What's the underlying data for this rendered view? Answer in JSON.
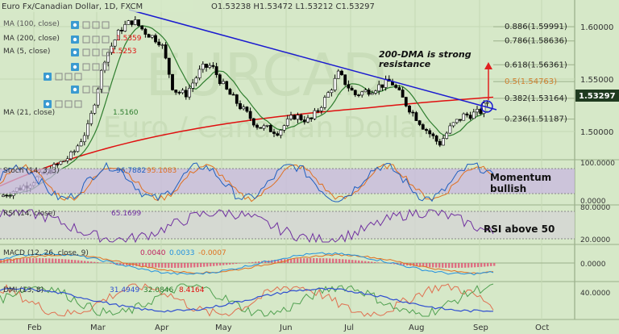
{
  "header": {
    "symbol": "Euro Fx/Canadian Dollar, 1D, FXCM",
    "ohlc": "O1.53238  H1.53472  L1.53212  C1.53297"
  },
  "indicators": {
    "ma100": "MA (100, close)",
    "ma200": "MA (200, close)",
    "ma200_value": "1.5359",
    "ma5": "MA (5, close)",
    "ma5_value": "1.5253",
    "ma21": "MA (21, close)",
    "ma21_value": "1.5160"
  },
  "watermark": "EURCAD",
  "watermark_sub": "Euro / Canadian Dollar",
  "fib_levels": [
    {
      "label": "0.886(1.59991)",
      "value": 1.59991
    },
    {
      "label": "0.786(1.58636)",
      "value": 1.58636
    },
    {
      "label": "0.618(1.56361)",
      "value": 1.56361
    },
    {
      "label": "0.5(1.54763)",
      "value": 1.54763
    },
    {
      "label": "0.382(1.53164)",
      "value": 1.53164
    },
    {
      "label": "0.236(1.51187)",
      "value": 1.51187
    }
  ],
  "annotations": {
    "dma_note_1": "200-DMA is strong",
    "dma_note_2": "resistance",
    "momentum_1": "Momentum",
    "momentum_2": "bullish",
    "rsi_note": "RSI above 50"
  },
  "price_axis": [
    "1.60000",
    "1.55000",
    "1.50000"
  ],
  "current_price": "1.53297",
  "stoch": {
    "label": "Stoch (14, 3, 3)",
    "k": "96.7882",
    "d": "95.1083",
    "ticks": [
      "100.0000",
      "0.0000"
    ]
  },
  "rsi": {
    "label": "RSI (14, close)",
    "value": "65.1699",
    "ticks": [
      "80.0000",
      "20.0000"
    ]
  },
  "macd": {
    "label": "MACD (12, 26, close, 9)",
    "v1": "0.0040",
    "v2": "0.0033",
    "v3": "-0.0007",
    "ticks": [
      "0.0000"
    ]
  },
  "dmi": {
    "label": "DMI (13, 8)",
    "v1": "31.4949",
    "v2": "32.0846",
    "v3": "8.4164",
    "ticks": [
      "40.0000"
    ]
  },
  "time_axis": [
    "Feb",
    "Mar",
    "Apr",
    "May",
    "Jun",
    "Jul",
    "Aug",
    "Sep",
    "Oct"
  ],
  "colors": {
    "bg": "#d6e8c8",
    "trend": "#1a1ad0",
    "ma200": "#e01010",
    "ma21": "#2e7d2e",
    "stoch_band": "#c8b8e0",
    "arrow": "#e02020"
  }
}
